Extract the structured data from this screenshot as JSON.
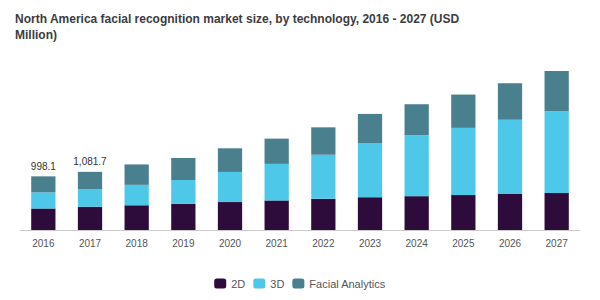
{
  "chart_data": {
    "type": "bar",
    "stacked": true,
    "title": "North America facial recognition market size, by technology, 2016 - 2027 (USD\nMillion)",
    "categories": [
      "2016",
      "2017",
      "2018",
      "2019",
      "2020",
      "2021",
      "2022",
      "2023",
      "2024",
      "2025",
      "2026",
      "2027"
    ],
    "series": [
      {
        "name": "2D",
        "color": "#2d0b3b",
        "values": [
          400,
          432,
          460,
          490,
          520,
          550,
          580,
          610,
          630,
          650,
          670,
          690
        ]
      },
      {
        "name": "3D",
        "color": "#4ec8e8",
        "values": [
          300,
          325,
          380,
          440,
          560,
          680,
          820,
          1000,
          1130,
          1250,
          1380,
          1520
        ]
      },
      {
        "name": "Facial Analytics",
        "color": "#4a7f8e",
        "values": [
          298,
          325,
          380,
          410,
          440,
          470,
          510,
          550,
          580,
          620,
          680,
          750
        ]
      }
    ],
    "annotations": [
      {
        "category": "2016",
        "text": "998.1"
      },
      {
        "category": "2017",
        "text": "1,081.7"
      }
    ],
    "ylim": [
      0,
      3200
    ],
    "tick_labels": "x",
    "grid": false,
    "legend": "bottom"
  }
}
